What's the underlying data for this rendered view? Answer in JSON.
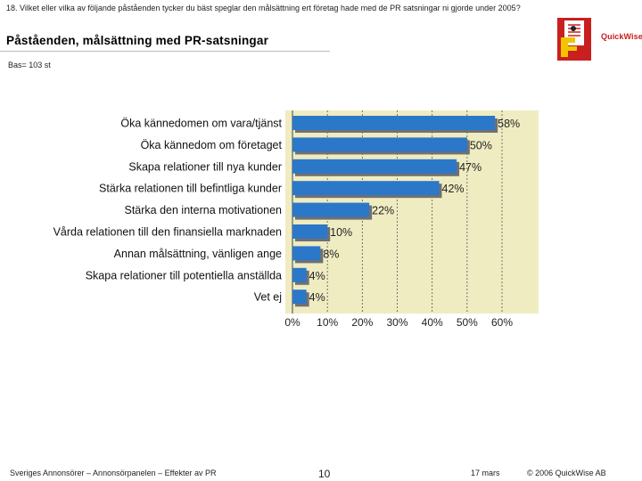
{
  "question": "18. Vilket eller vilka av följande påståenden tycker du bäst speglar den målsättning ert företag hade med de PR satsningar ni gjorde under 2005?",
  "heading": "Påståenden, målsättning med PR-satsningar",
  "base": "Bas= 103 st",
  "logo": {
    "text": "QuickWise",
    "colors": {
      "primary": "#c8201f",
      "accent": "#f2c500"
    },
    "icon": "document-pencil-logo"
  },
  "footer": {
    "source": "Sveriges Annonsörer – Annonsörpanelen – Effekter av PR",
    "page": "10",
    "date": "17 mars",
    "copyright": "© 2006 QuickWise AB"
  },
  "chart_data": {
    "type": "bar",
    "orientation": "horizontal",
    "categories": [
      "Öka kännedomen om vara/tjänst",
      "Öka kännedom om företaget",
      "Skapa relationer till nya kunder",
      "Stärka relationen till befintliga kunder",
      "Stärka den interna motivationen",
      "Vårda relationen till den finansiella marknaden",
      "Annan målsättning, vänligen ange",
      "Skapa relationer till potentiella anställda",
      "Vet ej"
    ],
    "values": [
      58,
      50,
      47,
      42,
      22,
      10,
      8,
      4,
      4
    ],
    "value_labels": [
      "58%",
      "50%",
      "47%",
      "42%",
      "22%",
      "10%",
      "8%",
      "4%",
      "4%"
    ],
    "xlim": [
      0,
      60
    ],
    "xticks": [
      0,
      10,
      20,
      30,
      40,
      50,
      60
    ],
    "xtick_labels": [
      "0%",
      "10%",
      "20%",
      "30%",
      "40%",
      "50%",
      "60%"
    ],
    "grid": "vertical dashed",
    "colors": {
      "bar": "#2c78c8",
      "bar_shadow": "#707070",
      "plot_background": "#efecc2",
      "grid": "#555555"
    }
  }
}
